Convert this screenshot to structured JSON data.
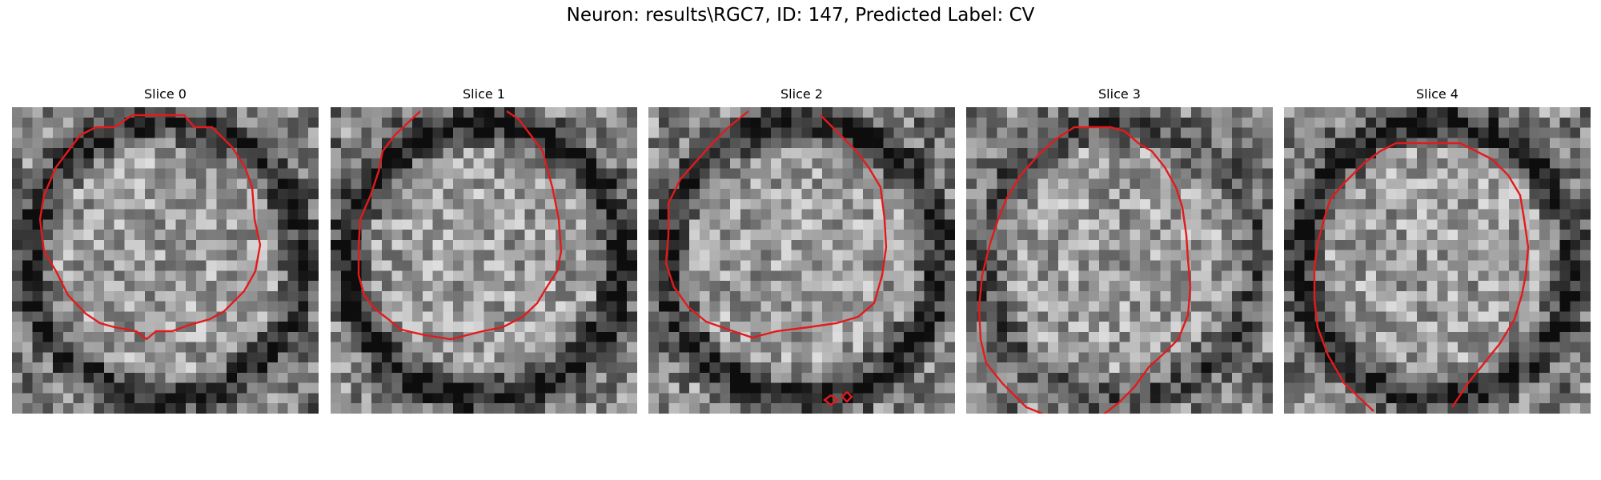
{
  "figure": {
    "suptitle": "Neuron: results\\RGC7, ID: 147, Predicted Label: CV"
  },
  "panels": [
    {
      "title": "Slice 0",
      "seed": 11,
      "ring_dark": 0.35
    },
    {
      "title": "Slice 1",
      "seed": 23,
      "ring_dark": 0.45
    },
    {
      "title": "Slice 2",
      "seed": 37,
      "ring_dark": 0.4
    },
    {
      "title": "Slice 3",
      "seed": 51,
      "ring_dark": 0.2
    },
    {
      "title": "Slice 4",
      "seed": 67,
      "ring_dark": 0.4
    }
  ],
  "colors": {
    "contour": "#e31a1c",
    "background": "#ffffff"
  }
}
